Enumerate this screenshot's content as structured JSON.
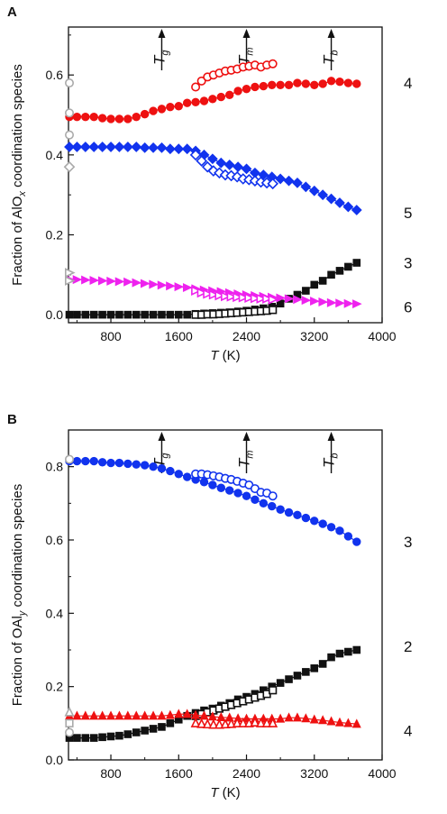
{
  "chart_data": [
    {
      "panel": "A",
      "type": "scatter",
      "xlabel": "T (K)",
      "xlabel_main": "T",
      "xlabel_unit": " (K)",
      "ylabel": "Fraction of AlOx coordination species",
      "ylabel_parts": [
        "Fraction of AlO",
        "x",
        " coordination species"
      ],
      "xlim": [
        300,
        4000
      ],
      "ylim": [
        -0.02,
        0.72
      ],
      "xticks": [
        800,
        1600,
        2400,
        3200,
        4000
      ],
      "yticks": [
        0.0,
        0.2,
        0.4,
        0.6
      ],
      "ytick_labels": [
        "0.0",
        "0.2",
        "0.4",
        "0.6"
      ],
      "markers": [
        {
          "label": "g",
          "x": 1400
        },
        {
          "label": "m",
          "x": 2400
        },
        {
          "label": "b",
          "x": 3400
        }
      ],
      "series": [
        {
          "name": "4",
          "marker": "circle",
          "filled": true,
          "color": "#ee1111",
          "line": true,
          "x": [
            300,
            400,
            500,
            600,
            700,
            800,
            900,
            1000,
            1100,
            1200,
            1300,
            1400,
            1500,
            1600,
            1700,
            1800,
            1900,
            2000,
            2100,
            2200,
            2300,
            2400,
            2500,
            2600,
            2700,
            2800,
            2900,
            3000,
            3100,
            3200,
            3300,
            3400,
            3500,
            3600,
            3700
          ],
          "y": [
            0.495,
            0.495,
            0.495,
            0.495,
            0.492,
            0.49,
            0.49,
            0.49,
            0.495,
            0.502,
            0.51,
            0.515,
            0.52,
            0.522,
            0.53,
            0.532,
            0.535,
            0.54,
            0.545,
            0.55,
            0.56,
            0.565,
            0.57,
            0.572,
            0.575,
            0.575,
            0.575,
            0.58,
            0.578,
            0.575,
            0.578,
            0.585,
            0.583,
            0.58,
            0.578
          ]
        },
        {
          "name": "4 (open)",
          "marker": "circle",
          "filled": false,
          "color": "#ee1111",
          "line": false,
          "x": [
            1800,
            1870,
            1940,
            2010,
            2080,
            2150,
            2220,
            2290,
            2360,
            2430,
            2500,
            2570,
            2640,
            2710
          ],
          "y": [
            0.57,
            0.585,
            0.595,
            0.6,
            0.605,
            0.61,
            0.612,
            0.615,
            0.62,
            0.622,
            0.625,
            0.62,
            0.625,
            0.628
          ]
        },
        {
          "name": "5",
          "marker": "diamond",
          "filled": true,
          "color": "#1133ee",
          "line": true,
          "x": [
            300,
            400,
            500,
            600,
            700,
            800,
            900,
            1000,
            1100,
            1200,
            1300,
            1400,
            1500,
            1600,
            1700,
            1800,
            1900,
            2000,
            2100,
            2200,
            2300,
            2400,
            2500,
            2600,
            2700,
            2800,
            2900,
            3000,
            3100,
            3200,
            3300,
            3400,
            3500,
            3600,
            3700
          ],
          "y": [
            0.42,
            0.42,
            0.42,
            0.42,
            0.42,
            0.42,
            0.42,
            0.42,
            0.42,
            0.418,
            0.418,
            0.418,
            0.415,
            0.415,
            0.415,
            0.41,
            0.4,
            0.39,
            0.38,
            0.375,
            0.37,
            0.365,
            0.355,
            0.35,
            0.345,
            0.34,
            0.335,
            0.33,
            0.32,
            0.31,
            0.3,
            0.29,
            0.28,
            0.27,
            0.262
          ]
        },
        {
          "name": "5 (open)",
          "marker": "diamond",
          "filled": false,
          "color": "#1133ee",
          "line": false,
          "x": [
            1800,
            1870,
            1940,
            2010,
            2080,
            2150,
            2220,
            2290,
            2360,
            2430,
            2500,
            2570,
            2640,
            2710
          ],
          "y": [
            0.4,
            0.385,
            0.37,
            0.36,
            0.355,
            0.35,
            0.348,
            0.345,
            0.34,
            0.338,
            0.335,
            0.332,
            0.33,
            0.328
          ]
        },
        {
          "name": "3",
          "marker": "square",
          "filled": true,
          "color": "#111111",
          "line": true,
          "x": [
            300,
            400,
            500,
            600,
            700,
            800,
            900,
            1000,
            1100,
            1200,
            1300,
            1400,
            1500,
            1600,
            1700,
            1800,
            1900,
            2000,
            2100,
            2200,
            2300,
            2400,
            2500,
            2600,
            2700,
            2800,
            2900,
            3000,
            3100,
            3200,
            3300,
            3400,
            3500,
            3600,
            3700
          ],
          "y": [
            0.0,
            0.0,
            0.0,
            0.0,
            0.0,
            0.0,
            0.0,
            0.0,
            0.0,
            0.0,
            0.0,
            0.0,
            0.0,
            0.0,
            0.0,
            0.002,
            0.003,
            0.004,
            0.005,
            0.006,
            0.008,
            0.01,
            0.013,
            0.016,
            0.02,
            0.028,
            0.04,
            0.05,
            0.06,
            0.075,
            0.085,
            0.1,
            0.11,
            0.12,
            0.13
          ]
        },
        {
          "name": "3 (open)",
          "marker": "square",
          "filled": false,
          "color": "#111111",
          "line": false,
          "x": [
            1800,
            1870,
            1940,
            2010,
            2080,
            2150,
            2220,
            2290,
            2360,
            2430,
            2500,
            2570,
            2640,
            2710
          ],
          "y": [
            0.0,
            0.0,
            0.001,
            0.001,
            0.002,
            0.003,
            0.004,
            0.005,
            0.006,
            0.007,
            0.008,
            0.009,
            0.01,
            0.012
          ]
        },
        {
          "name": "6",
          "marker": "triangle-right",
          "filled": true,
          "color": "#ee22ee",
          "line": true,
          "x": [
            300,
            400,
            500,
            600,
            700,
            800,
            900,
            1000,
            1100,
            1200,
            1300,
            1400,
            1500,
            1600,
            1700,
            1800,
            1900,
            2000,
            2100,
            2200,
            2300,
            2400,
            2500,
            2600,
            2700,
            2800,
            2900,
            3000,
            3100,
            3200,
            3300,
            3400,
            3500,
            3600,
            3700
          ],
          "y": [
            0.088,
            0.088,
            0.087,
            0.086,
            0.085,
            0.084,
            0.083,
            0.082,
            0.08,
            0.078,
            0.076,
            0.074,
            0.072,
            0.07,
            0.068,
            0.065,
            0.062,
            0.06,
            0.058,
            0.055,
            0.052,
            0.05,
            0.048,
            0.046,
            0.044,
            0.042,
            0.04,
            0.038,
            0.036,
            0.034,
            0.032,
            0.03,
            0.029,
            0.028,
            0.027
          ]
        },
        {
          "name": "6 (open)",
          "marker": "triangle-right",
          "filled": false,
          "color": "#ee22ee",
          "line": false,
          "x": [
            1800,
            1870,
            1940,
            2010,
            2080,
            2150,
            2220,
            2290,
            2360,
            2430,
            2500,
            2570,
            2640,
            2710
          ],
          "y": [
            0.06,
            0.055,
            0.052,
            0.05,
            0.048,
            0.046,
            0.045,
            0.044,
            0.043,
            0.042,
            0.041,
            0.04,
            0.04,
            0.038
          ]
        },
        {
          "name": "exp (circle)",
          "marker": "circle",
          "filled": false,
          "color": "#aaaaaa",
          "line": false,
          "x": [
            300,
            300,
            300
          ],
          "y": [
            0.58,
            0.505,
            0.45
          ]
        },
        {
          "name": "exp (diamond)",
          "marker": "diamond",
          "filled": false,
          "color": "#aaaaaa",
          "line": false,
          "x": [
            300
          ],
          "y": [
            0.37
          ]
        },
        {
          "name": "exp (triangle)",
          "marker": "triangle-right",
          "filled": false,
          "color": "#aaaaaa",
          "line": false,
          "x": [
            300,
            300
          ],
          "y": [
            0.105,
            0.085
          ]
        }
      ],
      "series_labels": [
        {
          "text": "4",
          "y": 0.58
        },
        {
          "text": "5",
          "y": 0.255
        },
        {
          "text": "3",
          "y": 0.13
        },
        {
          "text": "6",
          "y": 0.02
        }
      ]
    },
    {
      "panel": "B",
      "type": "scatter",
      "xlabel": "T (K)",
      "xlabel_main": "T",
      "xlabel_unit": " (K)",
      "ylabel": "Fraction of OAly coordination species",
      "ylabel_parts": [
        "Fraction of OAl",
        "y",
        " coordination species"
      ],
      "xlim": [
        300,
        4000
      ],
      "ylim": [
        0.0,
        0.9
      ],
      "xticks": [
        800,
        1600,
        2400,
        3200,
        4000
      ],
      "yticks": [
        0.0,
        0.2,
        0.4,
        0.6,
        0.8
      ],
      "ytick_labels": [
        "0.0",
        "0.2",
        "0.4",
        "0.6",
        "0.8"
      ],
      "markers": [
        {
          "label": "g",
          "x": 1400
        },
        {
          "label": "m",
          "x": 2400
        },
        {
          "label": "b",
          "x": 3400
        }
      ],
      "series": [
        {
          "name": "3",
          "marker": "circle",
          "filled": true,
          "color": "#1133ee",
          "line": true,
          "x": [
            300,
            400,
            500,
            600,
            700,
            800,
            900,
            1000,
            1100,
            1200,
            1300,
            1400,
            1500,
            1600,
            1700,
            1800,
            1900,
            2000,
            2100,
            2200,
            2300,
            2400,
            2500,
            2600,
            2700,
            2800,
            2900,
            3000,
            3100,
            3200,
            3300,
            3400,
            3500,
            3600,
            3700
          ],
          "y": [
            0.815,
            0.815,
            0.815,
            0.815,
            0.812,
            0.81,
            0.81,
            0.808,
            0.806,
            0.804,
            0.8,
            0.795,
            0.788,
            0.78,
            0.772,
            0.765,
            0.758,
            0.75,
            0.742,
            0.735,
            0.728,
            0.72,
            0.71,
            0.7,
            0.692,
            0.683,
            0.675,
            0.668,
            0.66,
            0.652,
            0.644,
            0.635,
            0.625,
            0.61,
            0.595
          ]
        },
        {
          "name": "3 (open)",
          "marker": "circle",
          "filled": false,
          "color": "#1133ee",
          "line": false,
          "x": [
            1800,
            1870,
            1940,
            2010,
            2080,
            2150,
            2220,
            2290,
            2360,
            2430,
            2500,
            2570,
            2640,
            2710
          ],
          "y": [
            0.78,
            0.78,
            0.778,
            0.775,
            0.772,
            0.768,
            0.765,
            0.76,
            0.755,
            0.75,
            0.74,
            0.73,
            0.728,
            0.72
          ]
        },
        {
          "name": "2",
          "marker": "square",
          "filled": true,
          "color": "#111111",
          "line": true,
          "x": [
            300,
            400,
            500,
            600,
            700,
            800,
            900,
            1000,
            1100,
            1200,
            1300,
            1400,
            1500,
            1600,
            1700,
            1800,
            1900,
            2000,
            2100,
            2200,
            2300,
            2400,
            2500,
            2600,
            2700,
            2800,
            2900,
            3000,
            3100,
            3200,
            3300,
            3400,
            3500,
            3600,
            3700
          ],
          "y": [
            0.06,
            0.06,
            0.06,
            0.06,
            0.062,
            0.064,
            0.066,
            0.07,
            0.075,
            0.08,
            0.085,
            0.09,
            0.1,
            0.11,
            0.12,
            0.128,
            0.135,
            0.14,
            0.148,
            0.155,
            0.165,
            0.172,
            0.18,
            0.19,
            0.2,
            0.21,
            0.22,
            0.23,
            0.24,
            0.25,
            0.262,
            0.28,
            0.29,
            0.295,
            0.3
          ]
        },
        {
          "name": "2 (open)",
          "marker": "square",
          "filled": false,
          "color": "#111111",
          "line": false,
          "x": [
            1800,
            1870,
            1940,
            2010,
            2080,
            2150,
            2220,
            2290,
            2360,
            2430,
            2500,
            2570,
            2640,
            2710
          ],
          "y": [
            0.12,
            0.125,
            0.13,
            0.135,
            0.14,
            0.145,
            0.15,
            0.155,
            0.16,
            0.165,
            0.17,
            0.175,
            0.18,
            0.19
          ]
        },
        {
          "name": "4",
          "marker": "triangle-up",
          "filled": true,
          "color": "#ee1111",
          "line": true,
          "x": [
            300,
            400,
            500,
            600,
            700,
            800,
            900,
            1000,
            1100,
            1200,
            1300,
            1400,
            1500,
            1600,
            1700,
            1800,
            1900,
            2000,
            2100,
            2200,
            2300,
            2400,
            2500,
            2600,
            2700,
            2800,
            2900,
            3000,
            3100,
            3200,
            3300,
            3400,
            3500,
            3600,
            3700
          ],
          "y": [
            0.12,
            0.12,
            0.12,
            0.12,
            0.12,
            0.12,
            0.12,
            0.12,
            0.12,
            0.12,
            0.12,
            0.12,
            0.122,
            0.125,
            0.125,
            0.122,
            0.12,
            0.118,
            0.116,
            0.115,
            0.113,
            0.112,
            0.112,
            0.112,
            0.112,
            0.112,
            0.115,
            0.115,
            0.113,
            0.11,
            0.108,
            0.105,
            0.102,
            0.1,
            0.098
          ]
        },
        {
          "name": "4 (open)",
          "marker": "triangle-up",
          "filled": false,
          "color": "#ee1111",
          "line": false,
          "x": [
            1800,
            1870,
            1940,
            2010,
            2080,
            2150,
            2220,
            2290,
            2360,
            2430,
            2500,
            2570,
            2640,
            2710
          ],
          "y": [
            0.1,
            0.098,
            0.097,
            0.096,
            0.096,
            0.097,
            0.098,
            0.1,
            0.1,
            0.1,
            0.102,
            0.1,
            0.1,
            0.1
          ]
        },
        {
          "name": "exp (circle)",
          "marker": "circle",
          "filled": false,
          "color": "#aaaaaa",
          "line": false,
          "x": [
            300
          ],
          "y": [
            0.82
          ]
        },
        {
          "name": "exp (triangle)",
          "marker": "triangle-up",
          "filled": false,
          "color": "#aaaaaa",
          "line": false,
          "x": [
            300
          ],
          "y": [
            0.13
          ]
        },
        {
          "name": "exp (square)",
          "marker": "square",
          "filled": false,
          "color": "#aaaaaa",
          "line": false,
          "x": [
            300
          ],
          "y": [
            0.1
          ]
        },
        {
          "name": "exp (circle small)",
          "marker": "circle",
          "filled": false,
          "color": "#aaaaaa",
          "line": false,
          "x": [
            300
          ],
          "y": [
            0.075
          ]
        }
      ],
      "series_labels": [
        {
          "text": "3",
          "y": 0.595
        },
        {
          "text": "2",
          "y": 0.31
        },
        {
          "text": "4",
          "y": 0.08
        }
      ]
    }
  ]
}
